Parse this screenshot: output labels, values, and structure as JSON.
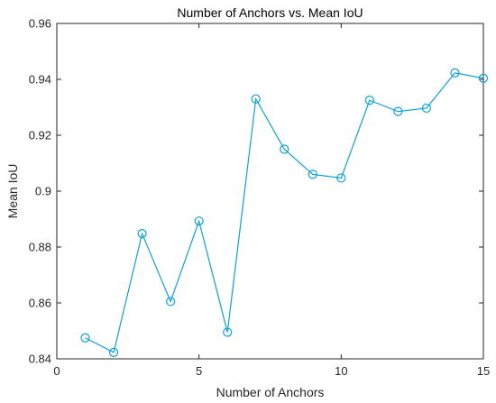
{
  "chart_data": {
    "type": "line",
    "title": "Number of Anchors vs. Mean IoU",
    "xlabel": "Number of Anchors",
    "ylabel": "Mean IoU",
    "xlim": [
      0,
      15
    ],
    "ylim": [
      0.84,
      0.96
    ],
    "xticks": [
      0,
      5,
      10,
      15
    ],
    "yticks": [
      0.84,
      0.86,
      0.88,
      0.9,
      0.92,
      0.94,
      0.96
    ],
    "xtick_labels": [
      "0",
      "5",
      "10",
      "15"
    ],
    "ytick_labels": [
      "0.84",
      "0.86",
      "0.88",
      "0.9",
      "0.92",
      "0.94",
      "0.96"
    ],
    "grid": false,
    "marker": "circle",
    "series": [
      {
        "color": "#0fa0d6",
        "x": [
          1,
          2,
          3,
          4,
          5,
          6,
          7,
          8,
          9,
          10,
          11,
          12,
          13,
          14,
          15
        ],
        "values": [
          0.8475,
          0.8423,
          0.8848,
          0.8605,
          0.8893,
          0.8495,
          0.933,
          0.915,
          0.906,
          0.9047,
          0.9325,
          0.9285,
          0.9297,
          0.9423,
          0.9404
        ]
      }
    ]
  }
}
